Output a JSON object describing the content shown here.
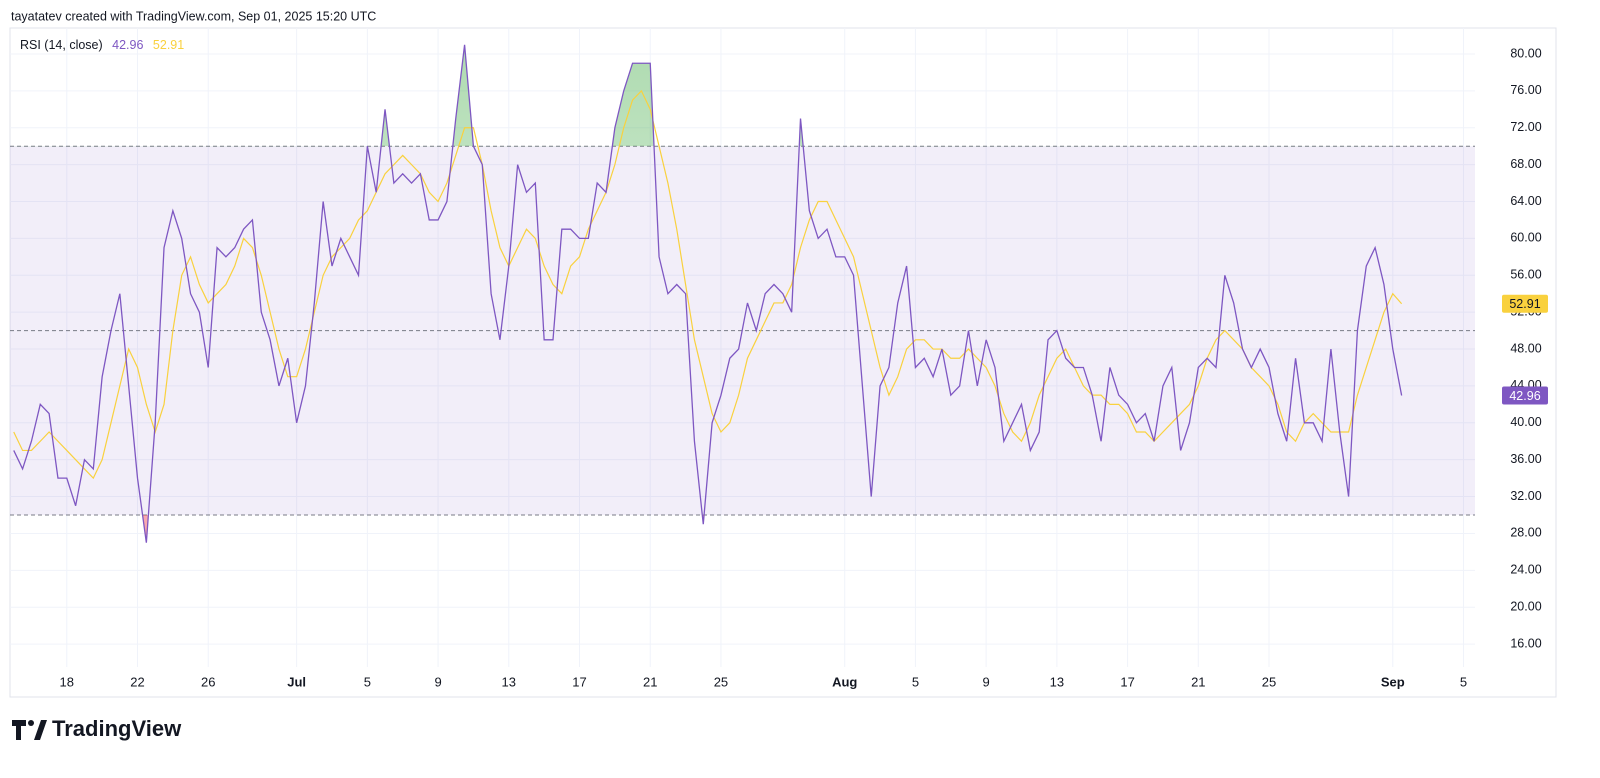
{
  "chart_data": {
    "type": "line",
    "attribution": "tayatatev created with TradingView.com, Sep 01, 2025 15:20 UTC",
    "title": "RSI (14, close)",
    "brand": "TradingView",
    "categories": [
      null,
      null,
      null,
      null,
      null,
      null,
      "18",
      null,
      null,
      null,
      null,
      null,
      null,
      null,
      "22",
      null,
      null,
      null,
      null,
      null,
      null,
      null,
      "26",
      null,
      null,
      null,
      null,
      null,
      null,
      null,
      null,
      null,
      "Jul",
      null,
      null,
      null,
      null,
      null,
      null,
      null,
      "5",
      null,
      null,
      null,
      null,
      null,
      null,
      null,
      "9",
      null,
      null,
      null,
      null,
      null,
      null,
      null,
      "13",
      null,
      null,
      null,
      null,
      null,
      null,
      null,
      "17",
      null,
      null,
      null,
      null,
      null,
      null,
      null,
      "21",
      null,
      null,
      null,
      null,
      null,
      null,
      null,
      "25",
      null,
      null,
      null,
      null,
      null,
      null,
      null,
      null,
      null,
      null,
      null,
      null,
      null,
      "Aug",
      null,
      null,
      null,
      null,
      null,
      null,
      null,
      "5",
      null,
      null,
      null,
      null,
      null,
      null,
      null,
      "9",
      null,
      null,
      null,
      null,
      null,
      null,
      null,
      "13",
      null,
      null,
      null,
      null,
      null,
      null,
      null,
      "17",
      null,
      null,
      null,
      null,
      null,
      null,
      null,
      "21",
      null,
      null,
      null,
      null,
      null,
      null,
      null,
      "25",
      null,
      null,
      null,
      null,
      null,
      null,
      null,
      null,
      null,
      null,
      null,
      null,
      null,
      "Sep",
      null,
      null,
      null,
      null,
      null,
      null,
      null,
      "5"
    ],
    "series": [
      {
        "color": "#7e57c2",
        "values": [
          37,
          35,
          38,
          42,
          41,
          34,
          34,
          31,
          36,
          35,
          45,
          50,
          54,
          44,
          34,
          27,
          40,
          59,
          63,
          60,
          54,
          52,
          46,
          59,
          58,
          59,
          61,
          62,
          52,
          49,
          44,
          47,
          40,
          44,
          53,
          64,
          57,
          60,
          58,
          56,
          70,
          65,
          74,
          66,
          67,
          66,
          67,
          62,
          62,
          64,
          73,
          81,
          70,
          68,
          54,
          49,
          57,
          68,
          65,
          66,
          49,
          49,
          61,
          61,
          60,
          60,
          66,
          65,
          72,
          76,
          79,
          79,
          79,
          58,
          54,
          55,
          54,
          38,
          29,
          40,
          43,
          47,
          48,
          53,
          50,
          54,
          55,
          54,
          52,
          73,
          63,
          60,
          61,
          58,
          58,
          56,
          44,
          32,
          44,
          46,
          53,
          57,
          46,
          47,
          45,
          48,
          43,
          44,
          50,
          44,
          49,
          46,
          38,
          40,
          42,
          37,
          39,
          49,
          50,
          47,
          46,
          46,
          43,
          38,
          46,
          43,
          42,
          40,
          41,
          38,
          44,
          46,
          37,
          40,
          46,
          47,
          46,
          56,
          53,
          48,
          46,
          48,
          46,
          41,
          38,
          47,
          40,
          40,
          38,
          48,
          39,
          32,
          50,
          57,
          59,
          55,
          48,
          42.96,
          null,
          null,
          null,
          null,
          null,
          null,
          null
        ]
      },
      {
        "color": "#f9d13e",
        "values": [
          39,
          37,
          37,
          38,
          39,
          38,
          37,
          36,
          35,
          34,
          36,
          40,
          44,
          48,
          46,
          42,
          39,
          42,
          50,
          56,
          58,
          55,
          53,
          54,
          55,
          57,
          60,
          59,
          56,
          52,
          48,
          45,
          45,
          48,
          52,
          56,
          58,
          59,
          60,
          62,
          63,
          65,
          67,
          68,
          69,
          68,
          67,
          65,
          64,
          66,
          69,
          72,
          72,
          68,
          63,
          59,
          57,
          59,
          61,
          60,
          57,
          55,
          54,
          57,
          58,
          61,
          63,
          65,
          68,
          72,
          75,
          76,
          74,
          70,
          66,
          61,
          55,
          49,
          45,
          41,
          39,
          40,
          43,
          47,
          49,
          51,
          53,
          53,
          55,
          59,
          62,
          64,
          64,
          62,
          60,
          58,
          54,
          50,
          46,
          43,
          45,
          48,
          49,
          49,
          48,
          48,
          47,
          47,
          48,
          47,
          46,
          44,
          41,
          39,
          38,
          40,
          43,
          45,
          47,
          48,
          46,
          44,
          43,
          43,
          42,
          42,
          41,
          39,
          39,
          38,
          39,
          40,
          41,
          42,
          44,
          47,
          49,
          50,
          49,
          48,
          46,
          45,
          44,
          42,
          39,
          38,
          40,
          41,
          40,
          39,
          39,
          39,
          43,
          46,
          49,
          52,
          54,
          52.91,
          null,
          null,
          null,
          null,
          null,
          null,
          null
        ]
      }
    ],
    "bands": {
      "upper": 70,
      "middle": 50,
      "lower": 30,
      "fill": "#7e57c2"
    },
    "ylim": [
      10.26,
      82.82
    ],
    "yticks": [
      {
        "value": 16,
        "label": "16.00"
      },
      {
        "value": 20,
        "label": "20.00"
      },
      {
        "value": 24,
        "label": "24.00"
      },
      {
        "value": 28,
        "label": "28.00"
      },
      {
        "value": 32,
        "label": "32.00"
      },
      {
        "value": 36,
        "label": "36.00"
      },
      {
        "value": 40,
        "label": "40.00"
      },
      {
        "value": 44,
        "label": "44.00"
      },
      {
        "value": 48,
        "label": "48.00"
      },
      {
        "value": 52,
        "label": "52.00"
      },
      {
        "value": 56,
        "label": "56.00"
      },
      {
        "value": 60,
        "label": "60.00"
      },
      {
        "value": 64,
        "label": "64.00"
      },
      {
        "value": 68,
        "label": "68.00"
      },
      {
        "value": 72,
        "label": "72.00"
      },
      {
        "value": 76,
        "label": "76.00"
      },
      {
        "value": 80,
        "label": "80.00"
      }
    ],
    "grid": true
  }
}
